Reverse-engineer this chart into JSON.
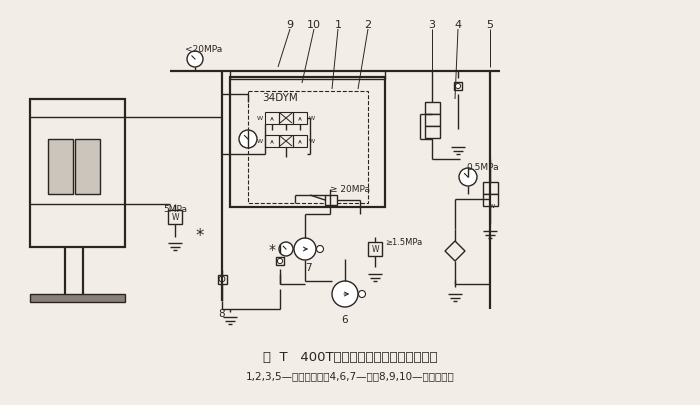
{
  "title_line1": "图  T   400T油压机液压系统图（改进前）",
  "title_line2": "1,2,3,5—电磁换向阀；4,6,7—泵；8,9,10—液控单向阀",
  "bg_color": "#f2ede6",
  "line_color": "#2a2520",
  "figsize": [
    7.0,
    4.06
  ],
  "dpi": 100,
  "labels_top": [
    [
      "9",
      290
    ],
    [
      "10",
      314
    ],
    [
      "1",
      338
    ],
    [
      "2",
      368
    ],
    [
      "3",
      432
    ],
    [
      "4",
      458
    ],
    [
      "5",
      490
    ]
  ],
  "labels_bottom": [
    [
      "8",
      290
    ],
    [
      "7",
      340
    ],
    [
      "6",
      408
    ]
  ],
  "pressure_20mpa": "<20MPa",
  "pressure_5mpa": "5MPa",
  "pressure_05mpa": "0.5MPa",
  "pressure_20mpa2": "≥ 20MPa",
  "pressure_15mpa": "≥1.5MPa",
  "label_34dym": "34DYM"
}
